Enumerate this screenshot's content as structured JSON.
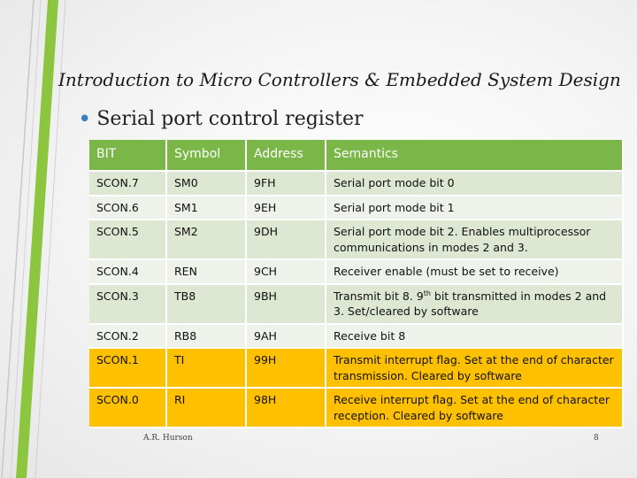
{
  "slide": {
    "title": "Introduction to Micro Controllers & Embedded System Design",
    "bullet": "Serial port control register",
    "footer_author": "A.R. Hurson",
    "page_number": "8",
    "colors": {
      "header_green": "#7ab648",
      "row_light": "#eef2ea",
      "row_dark": "#dde7d2",
      "highlight": "#ffc000",
      "deco_green": "#8cc63f"
    }
  },
  "table": {
    "headers": [
      "BIT",
      "Symbol",
      "Address",
      "Semantics"
    ],
    "rows": [
      {
        "bit": "SCON.7",
        "symbol": "SM0",
        "address": "9FH",
        "semantics": "Serial port mode bit 0"
      },
      {
        "bit": "SCON.6",
        "symbol": "SM1",
        "address": "9EH",
        "semantics": "Serial port mode bit 1"
      },
      {
        "bit": "SCON.5",
        "symbol": "SM2",
        "address": "9DH",
        "semantics": "Serial port mode bit 2.  Enables multiprocessor communications in modes 2 and 3."
      },
      {
        "bit": "SCON.4",
        "symbol": "REN",
        "address": "9CH",
        "semantics": "Receiver enable (must be set to receive)"
      },
      {
        "bit": "SCON.3",
        "symbol": "TB8",
        "address": "9BH",
        "semantics_pre": "Transmit bit 8.  9",
        "semantics_sup": "th",
        "semantics_post": " bit transmitted in modes 2 and 3.  Set/cleared by software"
      },
      {
        "bit": "SCON.2",
        "symbol": "RB8",
        "address": "9AH",
        "semantics": "Receive bit 8"
      },
      {
        "bit": "SCON.1",
        "symbol": "TI",
        "address": "99H",
        "semantics": "Transmit interrupt flag.  Set at the end of character transmission. Cleared by software"
      },
      {
        "bit": "SCON.0",
        "symbol": "RI",
        "address": "98H",
        "semantics": "Receive interrupt flag.  Set at the end of character reception. Cleared by software"
      }
    ]
  }
}
